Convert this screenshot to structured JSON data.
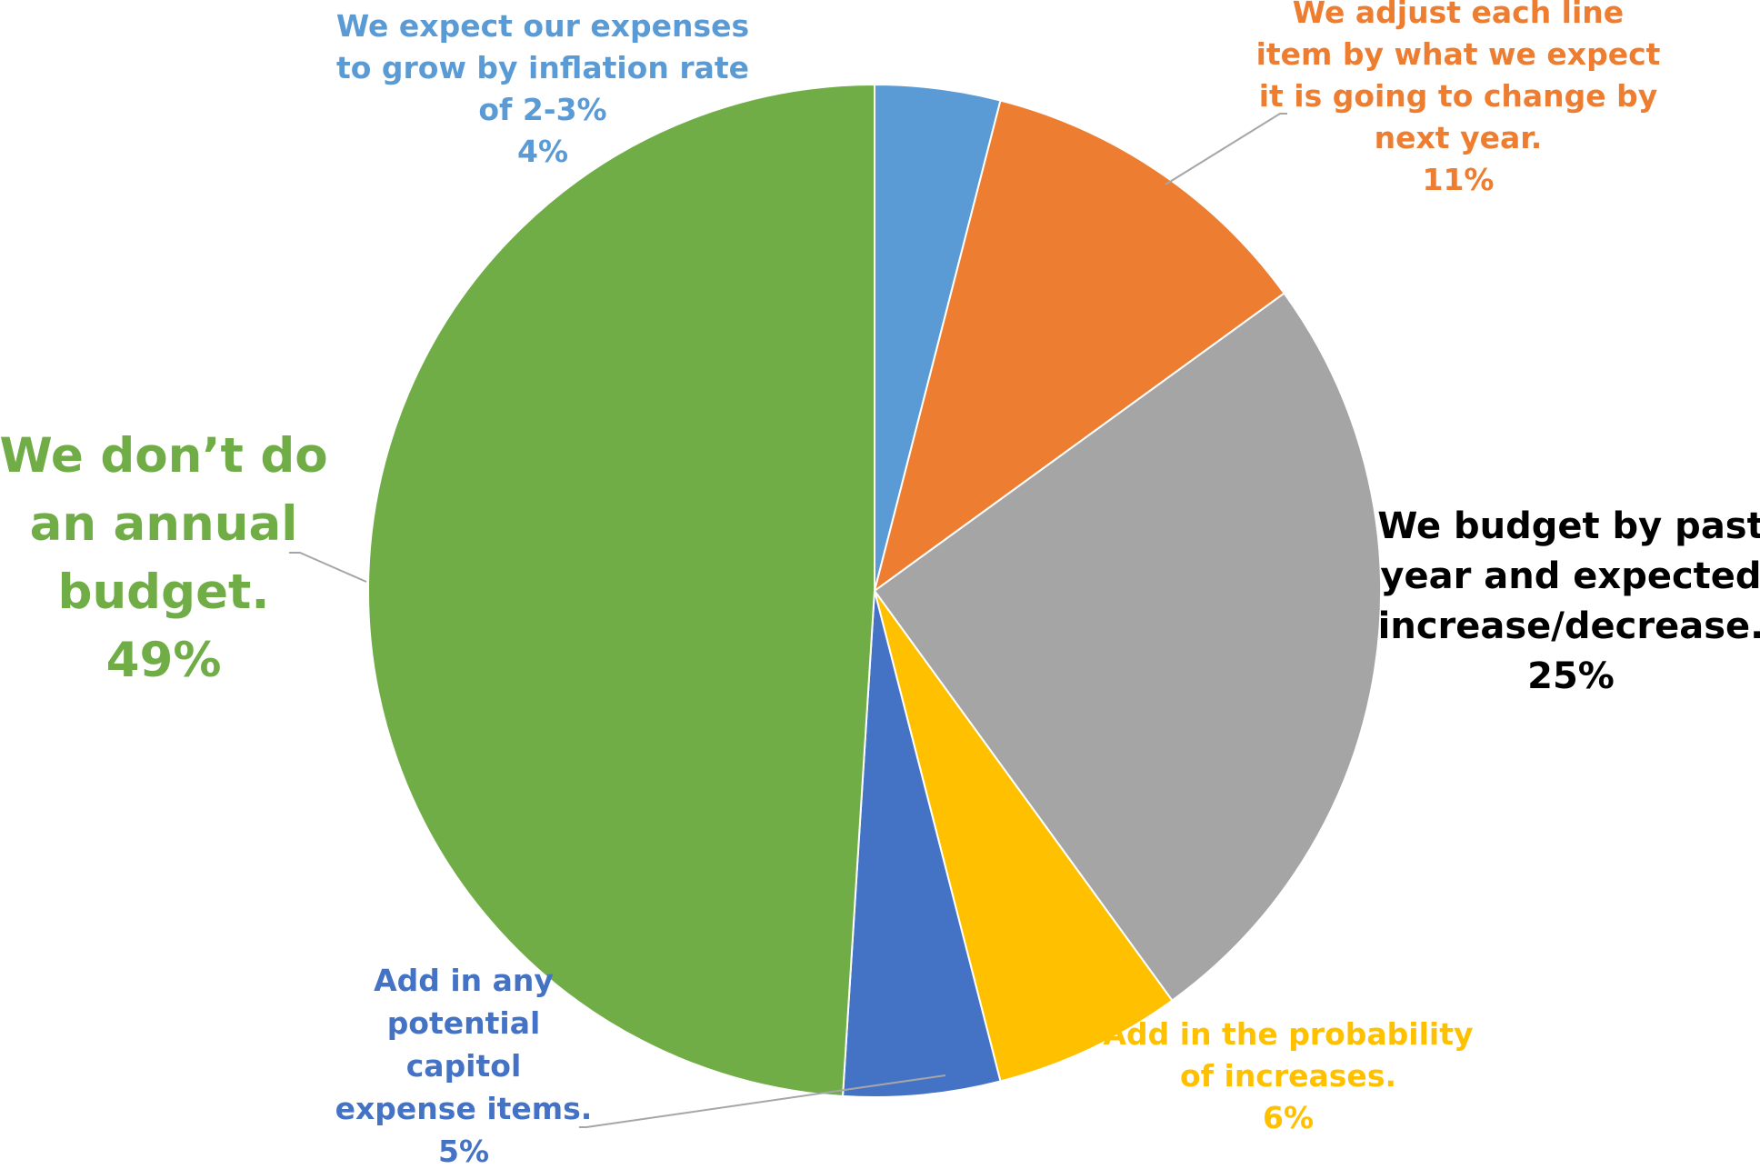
{
  "chart_data": {
    "type": "pie",
    "start_angle_deg": 0,
    "direction": "clockwise",
    "slices": [
      {
        "lines": [
          "We expect our expenses",
          "to grow by inflation rate",
          "of 2-3%"
        ],
        "value": 4,
        "value_label": "4%",
        "color": "#5B9BD5"
      },
      {
        "lines": [
          "We adjust each line",
          "item by what we expect",
          "it is going to change by",
          "next year."
        ],
        "value": 11,
        "value_label": "11%",
        "color": "#ED7D31"
      },
      {
        "lines": [
          "We budget by past",
          "year and expected",
          "increase/decrease."
        ],
        "value": 25,
        "value_label": "25%",
        "color": "#A5A5A5",
        "label_color": "#000000"
      },
      {
        "lines": [
          "Add in the probability",
          "of increases."
        ],
        "value": 6,
        "value_label": "6%",
        "color": "#FFC000"
      },
      {
        "lines": [
          "Add in any",
          "potential",
          "capitol",
          "expense items."
        ],
        "value": 5,
        "value_label": "5%",
        "color": "#4472C4"
      },
      {
        "lines": [
          "We don’t do",
          "an annual",
          "budget."
        ],
        "value": 49,
        "value_label": "49%",
        "color": "#70AD47"
      }
    ]
  }
}
